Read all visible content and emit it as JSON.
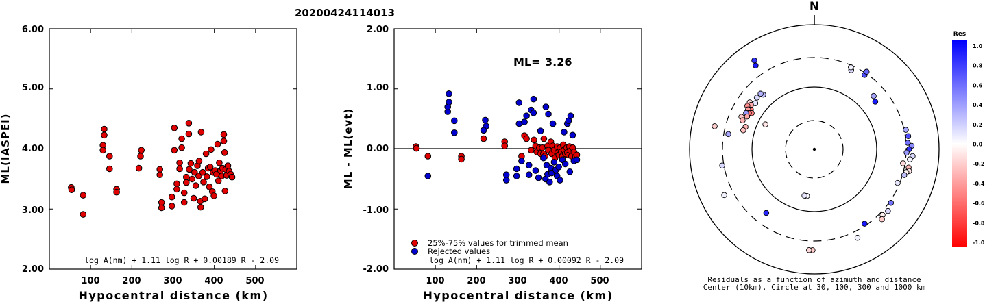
{
  "figure_title": "20200424114013",
  "chart_data": [
    {
      "type": "scatter",
      "ylabel": "ML(IASPEI)",
      "xlabel": "Hypocentral distance (km)",
      "xlim": [
        0,
        600
      ],
      "ylim": [
        2.0,
        6.0
      ],
      "xticks": [
        "100",
        "200",
        "300",
        "400",
        "500"
      ],
      "yticks": [
        "2.00",
        "3.00",
        "4.00",
        "5.00",
        "6.00"
      ],
      "formula": "log A(nm) + 1.11 log R + 0.00189 R - 2.09",
      "marker_color": "#e00000",
      "points": [
        [
          53,
          3.36
        ],
        [
          54,
          3.32
        ],
        [
          82,
          3.23
        ],
        [
          82,
          2.91
        ],
        [
          130,
          4.06
        ],
        [
          133,
          4.33
        ],
        [
          133,
          4.23
        ],
        [
          130,
          3.98
        ],
        [
          146,
          3.88
        ],
        [
          146,
          3.67
        ],
        [
          163,
          3.33
        ],
        [
          163,
          3.28
        ],
        [
          217,
          3.68
        ],
        [
          221,
          3.88
        ],
        [
          223,
          3.98
        ],
        [
          268,
          3.66
        ],
        [
          268,
          3.57
        ],
        [
          272,
          3.11
        ],
        [
          272,
          3.02
        ],
        [
          297,
          3.05
        ],
        [
          297,
          3.2
        ],
        [
          303,
          4.35
        ],
        [
          303,
          3.98
        ],
        [
          309,
          3.42
        ],
        [
          309,
          3.33
        ],
        [
          316,
          3.67
        ],
        [
          316,
          3.77
        ],
        [
          321,
          4.02
        ],
        [
          321,
          4.17
        ],
        [
          327,
          3.11
        ],
        [
          327,
          3.27
        ],
        [
          332,
          3.53
        ],
        [
          332,
          3.44
        ],
        [
          338,
          4.43
        ],
        [
          338,
          4.25
        ],
        [
          339,
          3.66
        ],
        [
          343,
          3.76
        ],
        [
          346,
          3.5
        ],
        [
          350,
          3.18
        ],
        [
          352,
          3.61
        ],
        [
          355,
          3.39
        ],
        [
          359,
          3.72
        ],
        [
          362,
          3.55
        ],
        [
          363,
          3.8
        ],
        [
          366,
          3.13
        ],
        [
          367,
          3.03
        ],
        [
          368,
          4.28
        ],
        [
          372,
          3.61
        ],
        [
          374,
          3.45
        ],
        [
          377,
          3.17
        ],
        [
          380,
          3.92
        ],
        [
          382,
          3.54
        ],
        [
          385,
          3.68
        ],
        [
          388,
          3.37
        ],
        [
          390,
          3.7
        ],
        [
          392,
          3.99
        ],
        [
          395,
          3.29
        ],
        [
          397,
          3.61
        ],
        [
          399,
          3.22
        ],
        [
          402,
          3.64
        ],
        [
          405,
          3.58
        ],
        [
          408,
          4.08
        ],
        [
          410,
          3.47
        ],
        [
          412,
          3.77
        ],
        [
          415,
          3.64
        ],
        [
          418,
          3.55
        ],
        [
          420,
          3.68
        ],
        [
          423,
          4.24
        ],
        [
          423,
          4.13
        ],
        [
          425,
          3.94
        ],
        [
          426,
          3.3
        ],
        [
          428,
          3.66
        ],
        [
          430,
          3.56
        ],
        [
          433,
          3.72
        ],
        [
          436,
          3.63
        ],
        [
          440,
          3.58
        ],
        [
          443,
          3.53
        ]
      ]
    },
    {
      "type": "scatter",
      "ylabel": "ML - ML(evt)",
      "xlabel": "Hypocentral distance (km)",
      "xlim": [
        0,
        600
      ],
      "ylim": [
        -2.0,
        2.0
      ],
      "xticks": [
        "100",
        "200",
        "300",
        "400",
        "500"
      ],
      "yticks": [
        "-2.00",
        "-1.00",
        "0.00",
        "1.00",
        "2.00"
      ],
      "ml_label": "ML=",
      "ml_value": "3.26",
      "formula": "log A(nm) + 1.11 log R + 0.00092 R - 2.09",
      "legend": [
        {
          "label": "25%-75% values for trimmed mean",
          "color": "#e00000"
        },
        {
          "label": "Rejected values",
          "color": "#0000d0"
        }
      ],
      "series": [
        {
          "name": "25%-75% values for trimmed mean",
          "color": "#e00000",
          "points": [
            [
              53,
              0.04
            ],
            [
              54,
              0.01
            ],
            [
              82,
              -0.12
            ],
            [
              163,
              -0.12
            ],
            [
              163,
              -0.17
            ],
            [
              217,
              0.17
            ],
            [
              268,
              0.12
            ],
            [
              268,
              0.05
            ],
            [
              309,
              -0.12
            ],
            [
              316,
              0.22
            ],
            [
              321,
              0.17
            ],
            [
              332,
              -0.02
            ],
            [
              339,
              0.15
            ],
            [
              343,
              0.05
            ],
            [
              346,
              -0.05
            ],
            [
              352,
              0.02
            ],
            [
              355,
              -0.08
            ],
            [
              359,
              0.02
            ],
            [
              362,
              -0.08
            ],
            [
              363,
              0.17
            ],
            [
              366,
              -0.12
            ],
            [
              372,
              0.05
            ],
            [
              374,
              -0.02
            ],
            [
              380,
              0.12
            ],
            [
              382,
              -0.08
            ],
            [
              385,
              0.05
            ],
            [
              388,
              -0.02
            ],
            [
              390,
              -0.15
            ],
            [
              395,
              0.04
            ],
            [
              397,
              -0.06
            ],
            [
              399,
              -0.1
            ],
            [
              402,
              0.02
            ],
            [
              405,
              -0.05
            ],
            [
              408,
              -0.12
            ],
            [
              410,
              0.07
            ],
            [
              412,
              -0.02
            ],
            [
              415,
              -0.08
            ],
            [
              418,
              0.02
            ],
            [
              420,
              -0.06
            ],
            [
              423,
              -0.1
            ],
            [
              425,
              0.04
            ],
            [
              428,
              -0.03
            ],
            [
              430,
              -0.12
            ],
            [
              433,
              0.02
            ],
            [
              436,
              -0.05
            ],
            [
              440,
              -0.13
            ],
            [
              443,
              -0.1
            ]
          ]
        },
        {
          "name": "Rejected values",
          "color": "#0000d0",
          "points": [
            [
              82,
              -0.45
            ],
            [
              130,
              0.62
            ],
            [
              133,
              0.92
            ],
            [
              130,
              0.7
            ],
            [
              133,
              0.78
            ],
            [
              146,
              0.47
            ],
            [
              146,
              0.27
            ],
            [
              221,
              0.48
            ],
            [
              223,
              0.38
            ],
            [
              217,
              0.31
            ],
            [
              272,
              -0.43
            ],
            [
              272,
              -0.52
            ],
            [
              297,
              -0.45
            ],
            [
              297,
              -0.33
            ],
            [
              303,
              0.77
            ],
            [
              303,
              0.42
            ],
            [
              309,
              -0.2
            ],
            [
              316,
              0.45
            ],
            [
              321,
              0.55
            ],
            [
              327,
              -0.43
            ],
            [
              327,
              -0.27
            ],
            [
              332,
              0.65
            ],
            [
              338,
              0.83
            ],
            [
              338,
              0.6
            ],
            [
              343,
              -0.36
            ],
            [
              350,
              -0.48
            ],
            [
              355,
              0.3
            ],
            [
              362,
              -0.15
            ],
            [
              367,
              -0.5
            ],
            [
              368,
              0.7
            ],
            [
              370,
              -0.27
            ],
            [
              372,
              -0.42
            ],
            [
              374,
              0.58
            ],
            [
              377,
              -0.55
            ],
            [
              380,
              -0.32
            ],
            [
              382,
              -0.4
            ],
            [
              385,
              0.42
            ],
            [
              388,
              -0.22
            ],
            [
              392,
              -0.35
            ],
            [
              395,
              -0.45
            ],
            [
              399,
              -0.3
            ],
            [
              402,
              -0.52
            ],
            [
              408,
              -0.18
            ],
            [
              412,
              0.28
            ],
            [
              415,
              -0.25
            ],
            [
              420,
              0.42
            ],
            [
              423,
              0.47
            ],
            [
              426,
              -0.38
            ],
            [
              428,
              0.55
            ],
            [
              433,
              0.23
            ],
            [
              436,
              -0.2
            ],
            [
              443,
              -0.18
            ]
          ]
        }
      ]
    },
    {
      "type": "scatter",
      "projection": "polar",
      "north_label": "N",
      "caption_line1": "Residuals as a function of azimuth and distance",
      "caption_line2": "Center (10km), Circle at 30, 100, 300 and 1000 km",
      "rings_km": [
        30,
        100,
        300,
        1000
      ],
      "colorbar": {
        "title": "Res",
        "ticks": [
          "1.0",
          "0.8",
          "0.6",
          "0.4",
          "0.2",
          "0.0",
          "-0.2",
          "-0.4",
          "-0.6",
          "-0.8",
          "-1.0"
        ],
        "max_color": "#0000ff",
        "mid_color": "#ffffff",
        "min_color": "#ff0000"
      },
      "stations": [
        {
          "az": -35,
          "r": 0.82,
          "res": 0.9
        },
        {
          "az": -34,
          "r": 0.86,
          "res": 0.8
        },
        {
          "az": -43,
          "r": 0.6,
          "res": 0.25
        },
        {
          "az": -44,
          "r": 0.62,
          "res": 0.3
        },
        {
          "az": -48,
          "r": 0.62,
          "res": 0.15
        },
        {
          "az": -52,
          "r": 0.6,
          "res": 0.1
        },
        {
          "az": -54,
          "r": 0.64,
          "res": -0.15
        },
        {
          "az": -55,
          "r": 0.62,
          "res": -0.35
        },
        {
          "az": -57,
          "r": 0.64,
          "res": -0.45
        },
        {
          "az": -58,
          "r": 0.6,
          "res": -0.55
        },
        {
          "az": -59,
          "r": 0.62,
          "res": -0.4
        },
        {
          "az": -60,
          "r": 0.58,
          "res": -0.5
        },
        {
          "az": -61,
          "r": 0.6,
          "res": -0.55
        },
        {
          "az": -62,
          "r": 0.62,
          "res": 0.4
        },
        {
          "az": -64,
          "r": 0.6,
          "res": -0.35
        },
        {
          "az": -66,
          "r": 0.64,
          "res": -0.2
        },
        {
          "az": -68,
          "r": 0.62,
          "res": -0.3
        },
        {
          "az": -72,
          "r": 0.58,
          "res": -0.3
        },
        {
          "az": -63,
          "r": 0.44,
          "res": -0.1
        },
        {
          "az": -75,
          "r": 0.59,
          "res": -0.25
        },
        {
          "az": -77,
          "r": 0.82,
          "res": -0.2
        },
        {
          "az": -80,
          "r": 0.7,
          "res": 0.35
        },
        {
          "az": -100,
          "r": 0.75,
          "res": 0.15
        },
        {
          "az": -117,
          "r": 0.81,
          "res": 0.05
        },
        {
          "az": -143,
          "r": 0.64,
          "res": 0.85
        },
        {
          "az": -171,
          "r": 0.38,
          "res": 0.02
        },
        {
          "az": -168,
          "r": 0.38,
          "res": 0.1
        },
        {
          "az": -179,
          "r": 0.81,
          "res": -0.2
        },
        {
          "az": -177,
          "r": 0.81,
          "res": -0.15
        },
        {
          "az": 25,
          "r": 0.7,
          "res": 0.15
        },
        {
          "az": 24,
          "r": 0.72,
          "res": 0.05
        },
        {
          "az": 34,
          "r": 0.72,
          "res": 0.7
        },
        {
          "az": 34,
          "r": 0.75,
          "res": 0.6
        },
        {
          "az": 48,
          "r": 0.64,
          "res": 0.35
        },
        {
          "az": 52,
          "r": 0.62,
          "res": 0.9
        },
        {
          "az": 78,
          "r": 0.75,
          "res": 0.35
        },
        {
          "az": 82,
          "r": 0.76,
          "res": 0.7
        },
        {
          "az": 86,
          "r": 0.75,
          "res": 0.55
        },
        {
          "az": 88,
          "r": 0.78,
          "res": 0.45
        },
        {
          "az": 90,
          "r": 0.76,
          "res": 0.8
        },
        {
          "az": 92,
          "r": 0.74,
          "res": 0.4
        },
        {
          "az": 94,
          "r": 0.79,
          "res": 0.15
        },
        {
          "az": 96,
          "r": 0.77,
          "res": 0.05
        },
        {
          "az": 99,
          "r": 0.72,
          "res": -0.15
        },
        {
          "az": 101,
          "r": 0.77,
          "res": -0.3
        },
        {
          "az": 103,
          "r": 0.78,
          "res": -0.1
        },
        {
          "az": 104,
          "r": 0.76,
          "res": -0.05
        },
        {
          "az": 106,
          "r": 0.75,
          "res": 0.25
        },
        {
          "az": 112,
          "r": 0.72,
          "res": 0.1
        },
        {
          "az": 125,
          "r": 0.75,
          "res": 0.55
        },
        {
          "az": 130,
          "r": 0.77,
          "res": 0.15
        },
        {
          "az": 134,
          "r": 0.76,
          "res": -0.05
        },
        {
          "az": 136,
          "r": 0.78,
          "res": -0.2
        },
        {
          "az": 146,
          "r": 0.72,
          "res": 0.9
        },
        {
          "az": 154,
          "r": 0.79,
          "res": 0.05
        }
      ]
    }
  ]
}
